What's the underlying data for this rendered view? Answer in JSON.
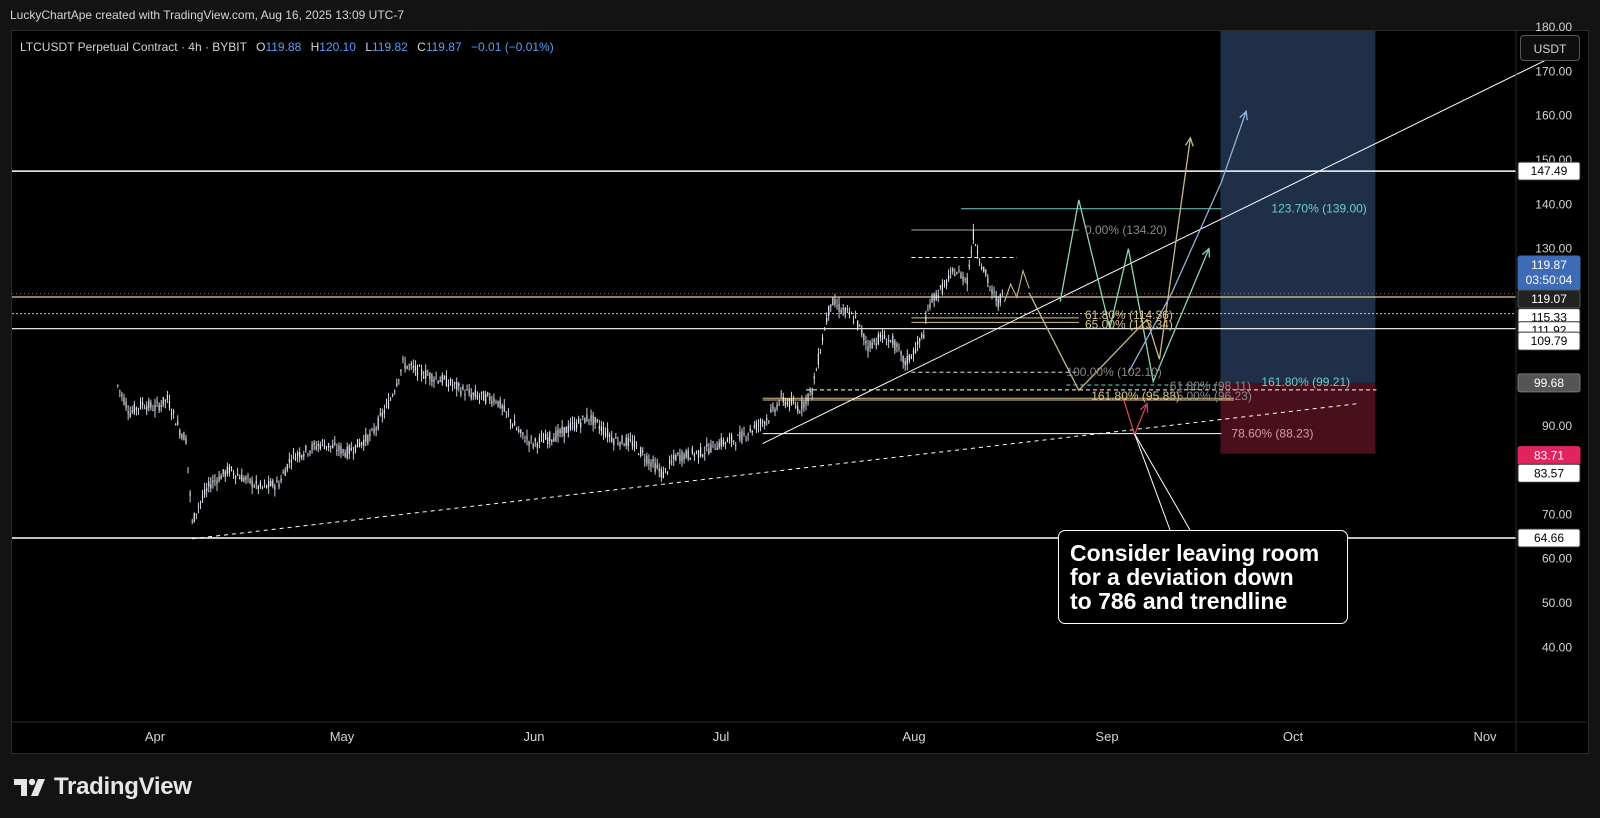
{
  "header": {
    "credit": "LuckyChartApe created with TradingView.com, Aug 16, 2025 13:09 UTC-7"
  },
  "legend": {
    "symbol": "LTCUSDT Perpetual Contract · 4h · BYBIT",
    "o_label": "O",
    "o_value": "119.88",
    "h_label": "H",
    "h_value": "120.10",
    "l_label": "L",
    "l_value": "119.82",
    "c_label": "C",
    "c_value": "119.87",
    "change": "−0.01 (−0.01%)"
  },
  "price_axis": {
    "unit": "USDT",
    "ticks": [
      "180.00",
      "170.00",
      "160.00",
      "150.00",
      "140.00",
      "130.00",
      "90.00",
      "70.00",
      "60.00",
      "50.00",
      "40.00"
    ],
    "badges": [
      {
        "text": "147.49"
      },
      {
        "text": "119.87",
        "sub": "03:50:04"
      },
      {
        "text": "119.07"
      },
      {
        "text": "115.33"
      },
      {
        "text": "111.92"
      },
      {
        "text": "109.79"
      },
      {
        "text": "99.68"
      },
      {
        "text": "83.71"
      },
      {
        "text": "83.57"
      },
      {
        "text": "64.66"
      }
    ]
  },
  "time_axis": {
    "ticks": [
      "Apr",
      "May",
      "Jun",
      "Jul",
      "Aug",
      "Sep",
      "Oct",
      "Nov"
    ]
  },
  "fib_labels": [
    {
      "text": "0.00% (134.20)"
    },
    {
      "text": "61.80% (114.36)"
    },
    {
      "text": "65.00% (113.34)"
    },
    {
      "text": "100.00% (102.10)"
    },
    {
      "text": "161.80% (95.83)"
    },
    {
      "text": "61.80% (98.11)"
    },
    {
      "text": "65.00% (96.23)"
    },
    {
      "text": "123.70% (139.00)"
    },
    {
      "text": "161.80% (99.21)"
    },
    {
      "text": "78.60% (88.23)"
    }
  ],
  "annotation": {
    "line1": "Consider leaving room",
    "line2": "for a deviation down",
    "line3": "to 786 and trendline"
  },
  "branding": {
    "wordmark": "TradingView"
  },
  "colors": {
    "background": "#000000",
    "candle": "#dfe4ee",
    "target_zone": "#1e2f47",
    "stop_zone": "#4a0f1d",
    "price_badge": "#3d6bb6",
    "stop_badge": "#e0245e",
    "fib_gold": "#d8c48a",
    "fib_cyan": "#6bd0c8",
    "path_tan": "#c8b88a",
    "path_green": "#8fd4b0",
    "path_blue": "#8fb0d8"
  },
  "chart_data": {
    "type": "candlestick",
    "interval": "4h",
    "x": [
      "Apr",
      "May",
      "Jun",
      "Jul",
      "Aug",
      "Sep",
      "Oct",
      "Nov"
    ],
    "ylim": [
      35,
      185
    ],
    "close_path": [
      {
        "t": "Mar 26",
        "v": 99
      },
      {
        "t": "Mar 28",
        "v": 93
      },
      {
        "t": "Mar 30",
        "v": 95
      },
      {
        "t": "Apr 1",
        "v": 94
      },
      {
        "t": "Apr 3",
        "v": 96
      },
      {
        "t": "Apr 5",
        "v": 89
      },
      {
        "t": "Apr 6",
        "v": 87
      },
      {
        "t": "Apr 7",
        "v": 68
      },
      {
        "t": "Apr 8",
        "v": 72
      },
      {
        "t": "Apr 10",
        "v": 77
      },
      {
        "t": "Apr 13",
        "v": 80
      },
      {
        "t": "Apr 18",
        "v": 76
      },
      {
        "t": "Apr 21",
        "v": 77
      },
      {
        "t": "Apr 23",
        "v": 83
      },
      {
        "t": "Apr 28",
        "v": 86
      },
      {
        "t": "May 2",
        "v": 84
      },
      {
        "t": "May 6",
        "v": 88
      },
      {
        "t": "May 9",
        "v": 96
      },
      {
        "t": "May 11",
        "v": 104
      },
      {
        "t": "May 14",
        "v": 102
      },
      {
        "t": "May 18",
        "v": 100
      },
      {
        "t": "May 22",
        "v": 97
      },
      {
        "t": "May 26",
        "v": 96
      },
      {
        "t": "May 30",
        "v": 88
      },
      {
        "t": "Jun 1",
        "v": 86
      },
      {
        "t": "Jun 5",
        "v": 88
      },
      {
        "t": "Jun 10",
        "v": 92
      },
      {
        "t": "Jun 14",
        "v": 87
      },
      {
        "t": "Jun 17",
        "v": 86
      },
      {
        "t": "Jun 22",
        "v": 79
      },
      {
        "t": "Jun 24",
        "v": 83
      },
      {
        "t": "Jun 28",
        "v": 84
      },
      {
        "t": "Jul 1",
        "v": 86
      },
      {
        "t": "Jul 4",
        "v": 87
      },
      {
        "t": "Jul 9",
        "v": 92
      },
      {
        "t": "Jul 11",
        "v": 96
      },
      {
        "t": "Jul 14",
        "v": 94
      },
      {
        "t": "Jul 16",
        "v": 98
      },
      {
        "t": "Jul 18",
        "v": 112
      },
      {
        "t": "Jul 19",
        "v": 118
      },
      {
        "t": "Jul 21",
        "v": 116
      },
      {
        "t": "Jul 23",
        "v": 114
      },
      {
        "t": "Jul 25",
        "v": 108
      },
      {
        "t": "Jul 27",
        "v": 110
      },
      {
        "t": "Jul 29",
        "v": 109
      },
      {
        "t": "Jul 31",
        "v": 104
      },
      {
        "t": "Aug 2",
        "v": 108
      },
      {
        "t": "Aug 3",
        "v": 111
      },
      {
        "t": "Aug 4",
        "v": 118
      },
      {
        "t": "Aug 6",
        "v": 121
      },
      {
        "t": "Aug 8",
        "v": 125
      },
      {
        "t": "Aug 10",
        "v": 123
      },
      {
        "t": "Aug 11",
        "v": 133
      },
      {
        "t": "Aug 12",
        "v": 128
      },
      {
        "t": "Aug 13",
        "v": 124
      },
      {
        "t": "Aug 14",
        "v": 120
      },
      {
        "t": "Aug 15",
        "v": 118
      },
      {
        "t": "Aug 16",
        "v": 119.87
      }
    ],
    "horizontal_levels": [
      147.49,
      119.07,
      115.33,
      111.92,
      64.66
    ],
    "fib_levels": [
      134.2,
      114.36,
      113.34,
      102.1,
      95.83,
      98.11,
      96.23,
      139.0,
      99.21,
      88.23
    ],
    "position": {
      "target": 180,
      "entry": 99.68,
      "stop": 83.71
    },
    "projected_paths": [
      {
        "name": "tan",
        "points": [
          [
            "Aug 20",
            120
          ],
          [
            "Aug 28",
            98
          ],
          [
            "Sep 8",
            114
          ],
          [
            "Sep 10",
            105
          ],
          [
            "Sep 15",
            155
          ]
        ]
      },
      {
        "name": "green",
        "points": [
          [
            "Aug 25",
            118
          ],
          [
            "Aug 28",
            141
          ],
          [
            "Sep 2",
            112
          ],
          [
            "Sep 5",
            130
          ],
          [
            "Sep 9",
            100
          ],
          [
            "Sep 18",
            130
          ]
        ]
      },
      {
        "name": "blue",
        "points": [
          [
            "Sep 5",
            102
          ],
          [
            "Sep 12",
            120
          ],
          [
            "Sep 20",
            145
          ],
          [
            "Sep 24",
            161
          ]
        ]
      },
      {
        "name": "red",
        "points": [
          [
            "Sep 4",
            97
          ],
          [
            "Sep 6",
            88
          ],
          [
            "Sep 8",
            95
          ]
        ]
      }
    ],
    "trendlines": [
      {
        "style": "solid",
        "from": [
          "Jul 8",
          86
        ],
        "to": [
          "Nov 12",
          173
        ]
      },
      {
        "style": "dashed",
        "from": [
          "Apr 7",
          64.5
        ],
        "to": [
          "Oct 12",
          95
        ]
      }
    ]
  }
}
